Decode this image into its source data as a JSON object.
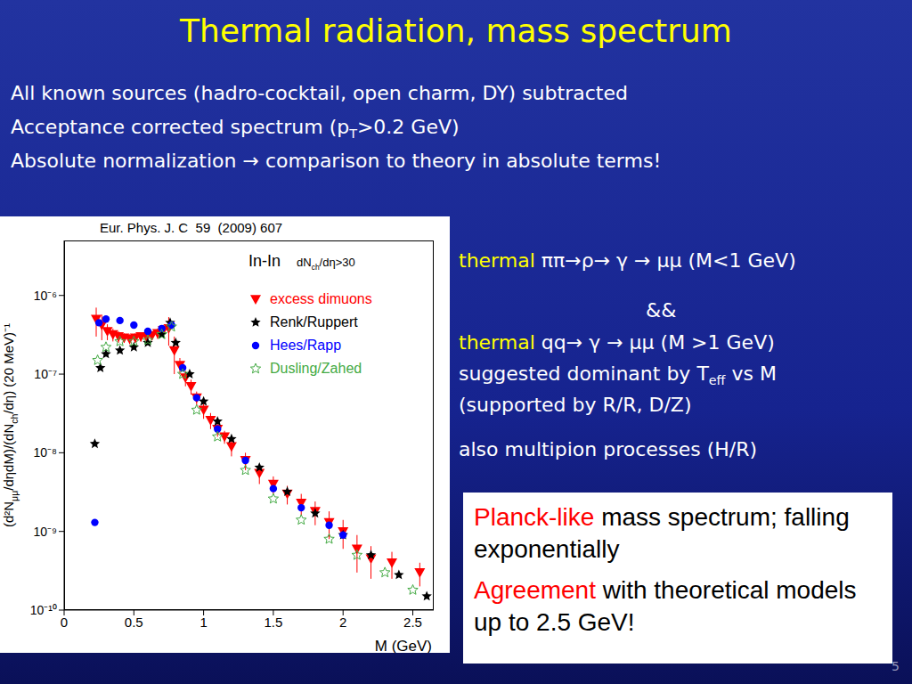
{
  "slide": {
    "title": "Thermal radiation, mass spectrum",
    "bullets": [
      [
        {
          "t": "All known sources (hadro-cocktail, open charm, DY) subtracted"
        }
      ],
      [
        {
          "t": "Acceptance corrected spectrum (p"
        },
        {
          "sub": "T"
        },
        {
          "t": ">0.2 GeV)"
        }
      ],
      [
        {
          "t": "Absolute normalization → comparison to theory in absolute terms!"
        }
      ]
    ],
    "notes": [
      [
        {
          "t": "thermal ",
          "c": "#ffff00"
        },
        {
          "t": "ππ→ρ→ γ → μμ (M<1 GeV)"
        }
      ],
      [
        {
          "t": "&&"
        }
      ],
      [
        {
          "t": "thermal ",
          "c": "#ffff00"
        },
        {
          "t": "qq→ γ → μμ (M >1 GeV)"
        }
      ],
      [
        {
          "t": "suggested dominant by T"
        },
        {
          "sub": "eff"
        },
        {
          "t": " vs M"
        }
      ],
      [
        {
          "t": "(supported by R/R, D/Z)"
        }
      ],
      [
        {
          "t": "also multipion processes (H/R)"
        }
      ]
    ],
    "box": [
      [
        {
          "t": "Planck-like",
          "c": "#ff0000"
        },
        {
          "t": " mass spectrum; falling exponentially"
        }
      ],
      [
        {
          "t": "Agreement",
          "c": "#ff0000"
        },
        {
          "t": " with theoretical models up to 2.5 GeV!"
        }
      ]
    ],
    "page": "5"
  },
  "chart_data": {
    "type": "scatter",
    "annotations": {
      "citation": "Eur. Phys. J. C  59  (2009) 607",
      "system": "In-In",
      "centrality": [
        {
          "t": "dN"
        },
        {
          "sub": "ch"
        },
        {
          "t": "/dη>30"
        }
      ]
    },
    "x_label": "M (GeV)",
    "y_label": [
      {
        "t": "(d²N"
      },
      {
        "sub": "μμ"
      },
      {
        "t": "/dηdM)/(dN"
      },
      {
        "sub": "ch"
      },
      {
        "t": "/dη) (20 MeV)⁻¹"
      }
    ],
    "log": "y",
    "legend": "top right",
    "xlim": [
      0,
      2.65
    ],
    "ylim": [
      1e-10,
      5e-06
    ],
    "xticks": [
      0,
      0.5,
      1,
      1.5,
      2,
      2.5
    ],
    "yticks": [
      {
        "value": 1e-10,
        "label": "10⁻¹⁰"
      },
      {
        "value": 1e-09,
        "label": "10⁻⁹"
      },
      {
        "value": 1e-08,
        "label": "10⁻⁸"
      },
      {
        "value": 1e-07,
        "label": "10⁻⁷"
      },
      {
        "value": 1e-06,
        "label": "10⁻⁶"
      }
    ],
    "series": [
      {
        "name": "excess dimuons",
        "color": "#ff0000",
        "marker": "triangle_down",
        "x": [
          0.23,
          0.27,
          0.31,
          0.35,
          0.39,
          0.43,
          0.47,
          0.51,
          0.55,
          0.59,
          0.63,
          0.67,
          0.71,
          0.75,
          0.79,
          0.83,
          0.87,
          0.91,
          0.95,
          1.0,
          1.05,
          1.1,
          1.15,
          1.2,
          1.3,
          1.4,
          1.5,
          1.6,
          1.7,
          1.8,
          1.9,
          2.0,
          2.1,
          2.2,
          2.35,
          2.55
        ],
        "values": [
          5e-07,
          4.2e-07,
          3.5e-07,
          3.2e-07,
          3e-07,
          2.9e-07,
          2.8e-07,
          2.9e-07,
          3e-07,
          3e-07,
          3.1e-07,
          3.3e-07,
          3.6e-07,
          3.8e-07,
          2e-07,
          1.3e-07,
          9e-08,
          7e-08,
          5e-08,
          3.5e-08,
          2.6e-08,
          2e-08,
          1.6e-08,
          1.2e-08,
          8e-09,
          5.5e-09,
          4e-09,
          3e-09,
          2.3e-09,
          1.8e-09,
          1.3e-09,
          1e-09,
          6e-10,
          4.5e-10,
          4e-10,
          3e-10
        ],
        "errors": [
          2e-07,
          1.5e-07,
          8e-08,
          6e-08,
          5e-08,
          4e-08,
          4e-08,
          4e-08,
          4e-08,
          4e-08,
          4e-08,
          5e-08,
          6e-08,
          1.5e-07,
          1e-07,
          3e-08,
          2e-08,
          1.5e-08,
          1e-08,
          8e-09,
          6e-09,
          4e-09,
          3e-09,
          3e-09,
          2e-09,
          1.5e-09,
          1e-09,
          8e-10,
          7e-10,
          6e-10,
          5e-10,
          4e-10,
          3e-10,
          2e-10,
          1.5e-10,
          1e-10
        ]
      },
      {
        "name": "Renk/Ruppert",
        "color": "#000000",
        "marker": "star",
        "x": [
          0.22,
          0.26,
          0.3,
          0.4,
          0.5,
          0.6,
          0.7,
          0.76,
          0.8,
          0.9,
          1.0,
          1.1,
          1.2,
          1.4,
          1.6,
          1.8,
          2.0,
          2.2,
          2.4,
          2.6
        ],
        "values": [
          1.3e-08,
          1.2e-07,
          1.8e-07,
          2e-07,
          2.2e-07,
          2.5e-07,
          3.2e-07,
          4.5e-07,
          2.5e-07,
          1e-07,
          4.5e-08,
          2.5e-08,
          1.5e-08,
          6.5e-09,
          3.2e-09,
          1.7e-09,
          9e-10,
          5e-10,
          2.8e-10,
          1.5e-10
        ]
      },
      {
        "name": "Hees/Rapp",
        "color": "#0000ff",
        "marker": "circle",
        "x": [
          0.22,
          0.25,
          0.3,
          0.4,
          0.5,
          0.6,
          0.7,
          0.77,
          0.85,
          0.95,
          1.1,
          1.3,
          1.5,
          1.7,
          1.9,
          2.0
        ],
        "values": [
          1.3e-09,
          4.5e-07,
          5e-07,
          4.8e-07,
          4.2e-07,
          3.5e-07,
          3.8e-07,
          4.2e-07,
          1.2e-07,
          5e-08,
          2e-08,
          8e-09,
          3.5e-09,
          2e-09,
          1.2e-09,
          9e-10
        ]
      },
      {
        "name": "Dusling/Zahed",
        "color": "#44aa44",
        "marker": "star_open",
        "x": [
          0.24,
          0.3,
          0.4,
          0.5,
          0.6,
          0.7,
          0.77,
          0.85,
          0.95,
          1.1,
          1.3,
          1.5,
          1.7,
          1.9,
          2.1,
          2.3,
          2.5
        ],
        "values": [
          1.5e-07,
          2.2e-07,
          2.6e-07,
          2.6e-07,
          2.7e-07,
          3.2e-07,
          4e-07,
          1e-07,
          3.5e-08,
          1.6e-08,
          6e-09,
          2.6e-09,
          1.4e-09,
          8e-10,
          5e-10,
          3e-10,
          1.8e-10
        ]
      }
    ]
  }
}
